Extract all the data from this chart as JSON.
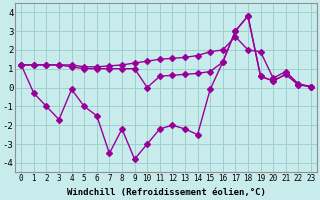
{
  "xlabel": "Windchill (Refroidissement éolien,°C)",
  "background_color": "#c8ecec",
  "grid_color": "#a0cece",
  "line_color": "#990099",
  "xlim": [
    -0.5,
    23.5
  ],
  "ylim": [
    -4.5,
    4.5
  ],
  "yticks": [
    -4,
    -3,
    -2,
    -1,
    0,
    1,
    2,
    3,
    4
  ],
  "xticks": [
    0,
    1,
    2,
    3,
    4,
    5,
    6,
    7,
    8,
    9,
    10,
    11,
    12,
    13,
    14,
    15,
    16,
    17,
    18,
    19,
    20,
    21,
    22,
    23
  ],
  "hours": [
    0,
    1,
    2,
    3,
    4,
    5,
    6,
    7,
    8,
    9,
    10,
    11,
    12,
    13,
    14,
    15,
    16,
    17,
    18,
    19,
    20,
    21,
    22,
    23
  ],
  "y_upper": [
    1.2,
    1.2,
    1.2,
    1.2,
    1.2,
    1.1,
    1.1,
    1.15,
    1.2,
    1.3,
    1.4,
    1.5,
    1.55,
    1.6,
    1.7,
    1.9,
    2.0,
    2.7,
    2.0,
    1.9,
    0.5,
    0.85,
    0.2,
    0.05
  ],
  "y_mid": [
    1.2,
    1.2,
    1.2,
    1.2,
    1.1,
    1.0,
    1.0,
    1.0,
    1.0,
    1.0,
    0.0,
    0.6,
    0.65,
    0.7,
    0.75,
    0.85,
    1.35,
    3.0,
    3.8,
    0.6,
    0.35,
    0.7,
    0.15,
    0.05
  ],
  "y_lower": [
    1.2,
    -0.3,
    -1.0,
    -1.7,
    -0.1,
    -1.0,
    -1.5,
    -3.5,
    -2.2,
    -3.8,
    -3.0,
    -2.2,
    -2.0,
    -2.2,
    -2.5,
    -0.1,
    1.35,
    3.0,
    3.8,
    0.6,
    0.35,
    0.7,
    0.15,
    0.05
  ]
}
